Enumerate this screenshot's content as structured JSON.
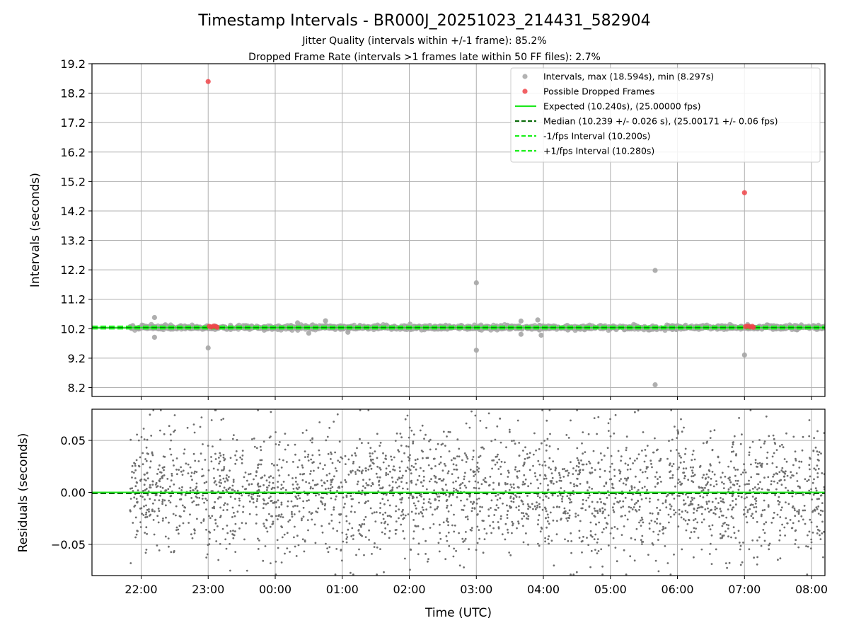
{
  "title": "Timestamp Intervals - BR000J_20251023_214431_582904",
  "subtitles": [
    "Jitter Quality (intervals within +/-1 frame): 85.2%",
    "Dropped Frame Rate (intervals >1 frames late within 50 FF files): 2.7%"
  ],
  "colors": {
    "intervals": "#a6a6a6",
    "dropped": "#f0454a",
    "expected": "#1de81d",
    "median": "#0b6b0b",
    "bound": "#19f019",
    "residuals": "#6e6e6e",
    "grid": "#b0b0b0"
  },
  "chart_data": [
    {
      "type": "scatter",
      "ylabel": "Intervals (seconds)",
      "xlim": [
        "2025-10-23T21:16",
        "2025-10-24T08:12"
      ],
      "ylim": [
        7.9,
        19.2
      ],
      "yticks": [
        "8.2",
        "9.2",
        "10.2",
        "11.2",
        "12.2",
        "13.2",
        "14.2",
        "15.2",
        "16.2",
        "17.2",
        "18.2",
        "19.2"
      ],
      "grid": true,
      "legend_position": "top-right",
      "legend": [
        "Intervals, max (18.594s), min (8.297s)",
        "Possible Dropped Frames",
        "Expected (10.240s), (25.00000 fps)",
        "Median (10.239 +/- 0.026 s), (25.00171 +/- 0.06 fps)",
        "-1/fps Interval (10.200s)",
        "+1/fps Interval (10.280s)"
      ],
      "series": [
        {
          "name": "Intervals, max (18.594s), min (8.297s)",
          "note_dense_band": {
            "x_from": "2025-10-23T21:50",
            "x_to": "2025-10-24T08:12",
            "y_around": 10.24
          },
          "points": [
            {
              "x": "2025-10-23T22:12",
              "y": 10.58
            },
            {
              "x": "2025-10-23T22:12",
              "y": 9.91
            },
            {
              "x": "2025-10-23T23:00",
              "y": 9.55
            },
            {
              "x": "2025-10-24T00:20",
              "y": 10.4
            },
            {
              "x": "2025-10-24T00:30",
              "y": 10.05
            },
            {
              "x": "2025-10-24T00:45",
              "y": 10.47
            },
            {
              "x": "2025-10-24T01:05",
              "y": 10.08
            },
            {
              "x": "2025-10-24T03:00",
              "y": 11.76
            },
            {
              "x": "2025-10-24T03:00",
              "y": 9.47
            },
            {
              "x": "2025-10-24T03:40",
              "y": 10.46
            },
            {
              "x": "2025-10-24T03:40",
              "y": 10.01
            },
            {
              "x": "2025-10-24T03:55",
              "y": 10.5
            },
            {
              "x": "2025-10-24T03:58",
              "y": 9.98
            },
            {
              "x": "2025-10-24T05:40",
              "y": 12.18
            },
            {
              "x": "2025-10-24T05:40",
              "y": 8.297
            },
            {
              "x": "2025-10-24T07:00",
              "y": 9.31
            }
          ]
        },
        {
          "name": "Possible Dropped Frames",
          "points": [
            {
              "x": "2025-10-23T23:00",
              "y": 18.594
            },
            {
              "x": "2025-10-23T23:01",
              "y": 10.28
            },
            {
              "x": "2025-10-23T23:03",
              "y": 10.26
            },
            {
              "x": "2025-10-23T23:05",
              "y": 10.29
            },
            {
              "x": "2025-10-23T23:07",
              "y": 10.27
            },
            {
              "x": "2025-10-23T23:08",
              "y": 10.25
            },
            {
              "x": "2025-10-24T07:00",
              "y": 14.82
            },
            {
              "x": "2025-10-24T07:01",
              "y": 10.27
            },
            {
              "x": "2025-10-24T07:03",
              "y": 10.29
            },
            {
              "x": "2025-10-24T07:05",
              "y": 10.26
            },
            {
              "x": "2025-10-24T07:07",
              "y": 10.28
            },
            {
              "x": "2025-10-24T07:08",
              "y": 10.25
            }
          ]
        }
      ],
      "lines": [
        {
          "name": "Expected (10.240s), (25.00000 fps)",
          "y": 10.24,
          "style": "solid"
        },
        {
          "name": "Median (10.239 +/- 0.026 s), (25.00171 +/- 0.06 fps)",
          "y": 10.239,
          "style": "dashed"
        },
        {
          "name": "-1/fps Interval (10.200s)",
          "y": 10.2,
          "style": "dashed"
        },
        {
          "name": "+1/fps Interval (10.280s)",
          "y": 10.28,
          "style": "dashed"
        }
      ]
    },
    {
      "type": "scatter",
      "xlabel": "Time (UTC)",
      "ylabel": "Residuals (seconds)",
      "xlim": [
        "2025-10-23T21:16",
        "2025-10-24T08:12"
      ],
      "ylim": [
        -0.08,
        0.08
      ],
      "xticks": [
        "22:00",
        "23:00",
        "00:00",
        "01:00",
        "02:00",
        "03:00",
        "04:00",
        "05:00",
        "06:00",
        "07:00",
        "08:00"
      ],
      "xtick_times": [
        "2025-10-23T22:00",
        "2025-10-23T23:00",
        "2025-10-24T00:00",
        "2025-10-24T01:00",
        "2025-10-24T02:00",
        "2025-10-24T03:00",
        "2025-10-24T04:00",
        "2025-10-24T05:00",
        "2025-10-24T06:00",
        "2025-10-24T07:00",
        "2025-10-24T08:00"
      ],
      "yticks": [
        "−0.05",
        "0.00",
        "0.05"
      ],
      "ytick_values": [
        -0.05,
        0.0,
        0.05
      ],
      "grid": true,
      "series": [
        {
          "name": "",
          "distribution": {
            "x_from": "2025-10-23T21:50",
            "x_to": "2025-10-24T08:12",
            "center": 0.0,
            "approx_spread": 0.03,
            "clipped_at": [
              -0.08,
              0.08
            ],
            "approx_count": 2600
          }
        }
      ],
      "lines": [
        {
          "name": "",
          "y": 0.0,
          "style": "solid"
        },
        {
          "name": "",
          "y": -0.001,
          "style": "dashed"
        }
      ]
    }
  ]
}
